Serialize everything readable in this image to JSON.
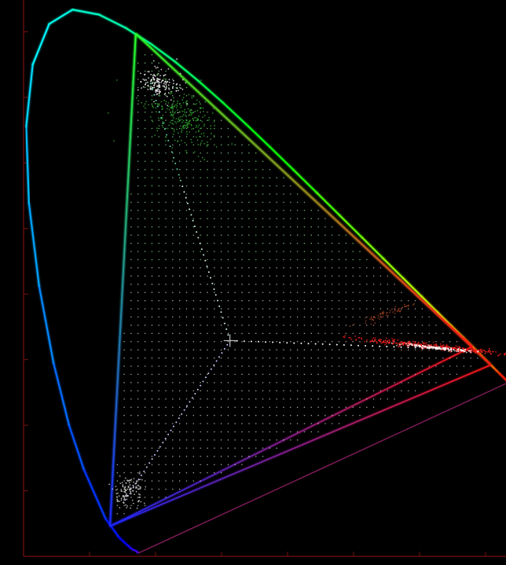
{
  "chart_data": {
    "type": "scatter",
    "title": "",
    "xlabel": "",
    "ylabel": "",
    "xlim": [
      0,
      0.8
    ],
    "ylim": [
      0,
      0.9
    ],
    "x_ticks": [
      0.1,
      0.2,
      0.3,
      0.4,
      0.5,
      0.6,
      0.7
    ],
    "y_ticks": [
      0.1,
      0.2,
      0.3,
      0.4,
      0.5,
      0.6,
      0.7,
      0.8
    ],
    "grid": false,
    "legend": "none",
    "spectral_locus": [
      [
        0.1741,
        0.005
      ],
      [
        0.1706,
        0.0079
      ],
      [
        0.1644,
        0.0109
      ],
      [
        0.1566,
        0.0177
      ],
      [
        0.144,
        0.0297
      ],
      [
        0.1241,
        0.0578
      ],
      [
        0.0913,
        0.1327
      ],
      [
        0.0687,
        0.2007
      ],
      [
        0.0454,
        0.295
      ],
      [
        0.0235,
        0.4127
      ],
      [
        0.0082,
        0.5384
      ],
      [
        0.0039,
        0.6548
      ],
      [
        0.0139,
        0.7502
      ],
      [
        0.0389,
        0.812
      ],
      [
        0.0743,
        0.8338
      ],
      [
        0.1142,
        0.8262
      ],
      [
        0.1547,
        0.8059
      ],
      [
        0.1929,
        0.7816
      ],
      [
        0.2296,
        0.7543
      ],
      [
        0.2658,
        0.7243
      ],
      [
        0.3016,
        0.6923
      ],
      [
        0.3373,
        0.6589
      ],
      [
        0.3731,
        0.6245
      ],
      [
        0.4087,
        0.5896
      ],
      [
        0.4441,
        0.5547
      ],
      [
        0.4788,
        0.5202
      ],
      [
        0.5125,
        0.4866
      ],
      [
        0.5448,
        0.4544
      ],
      [
        0.5752,
        0.4242
      ],
      [
        0.6029,
        0.3965
      ],
      [
        0.627,
        0.3725
      ],
      [
        0.6482,
        0.3514
      ],
      [
        0.6658,
        0.334
      ],
      [
        0.6801,
        0.3197
      ],
      [
        0.6915,
        0.3083
      ],
      [
        0.7006,
        0.2993
      ],
      [
        0.7079,
        0.292
      ],
      [
        0.714,
        0.2859
      ],
      [
        0.719,
        0.2809
      ],
      [
        0.723,
        0.277
      ],
      [
        0.7347,
        0.2653
      ]
    ],
    "gamut_triangles": [
      {
        "color": "#00ff40",
        "vertices": [
          [
            0.708,
            0.292
          ],
          [
            0.17,
            0.797
          ],
          [
            0.131,
            0.046
          ]
        ]
      },
      {
        "color": "#40ff40",
        "vertices": [
          [
            0.68,
            0.32
          ],
          [
            0.17,
            0.797
          ],
          [
            0.131,
            0.046
          ]
        ]
      }
    ],
    "white_point": [
      0.3127,
      0.329
    ],
    "series": [
      {
        "color": "#ffffff",
        "spokes": [
          {
            "to": [
              0.19,
              0.73
            ],
            "values": 46
          },
          {
            "to": [
              0.68,
              0.315
            ],
            "values": 34
          },
          {
            "to": [
              0.15,
              0.08
            ],
            "values": 40
          }
        ]
      }
    ],
    "clusters": [
      {
        "color": "#ffffff",
        "center": [
          0.205,
          0.72
        ],
        "spread": [
          0.012,
          0.045
        ],
        "angle": -62,
        "count": 160
      },
      {
        "color": "#2ea82e",
        "center": [
          0.24,
          0.67
        ],
        "spread": [
          0.02,
          0.08
        ],
        "angle": -58,
        "count": 260
      },
      {
        "color": "#ff2020",
        "center": [
          0.62,
          0.32
        ],
        "spread": [
          0.055,
          0.006
        ],
        "angle": 6,
        "count": 420
      },
      {
        "color": "#ffffff",
        "center": [
          0.625,
          0.318
        ],
        "spread": [
          0.03,
          0.003
        ],
        "angle": 6,
        "count": 160
      },
      {
        "color": "#a04020",
        "center": [
          0.55,
          0.37
        ],
        "spread": [
          0.02,
          0.008
        ],
        "angle": -22,
        "count": 60
      },
      {
        "color": "#d0d0d0",
        "center": [
          0.16,
          0.1
        ],
        "spread": [
          0.012,
          0.03
        ],
        "angle": -58,
        "count": 120
      }
    ]
  }
}
